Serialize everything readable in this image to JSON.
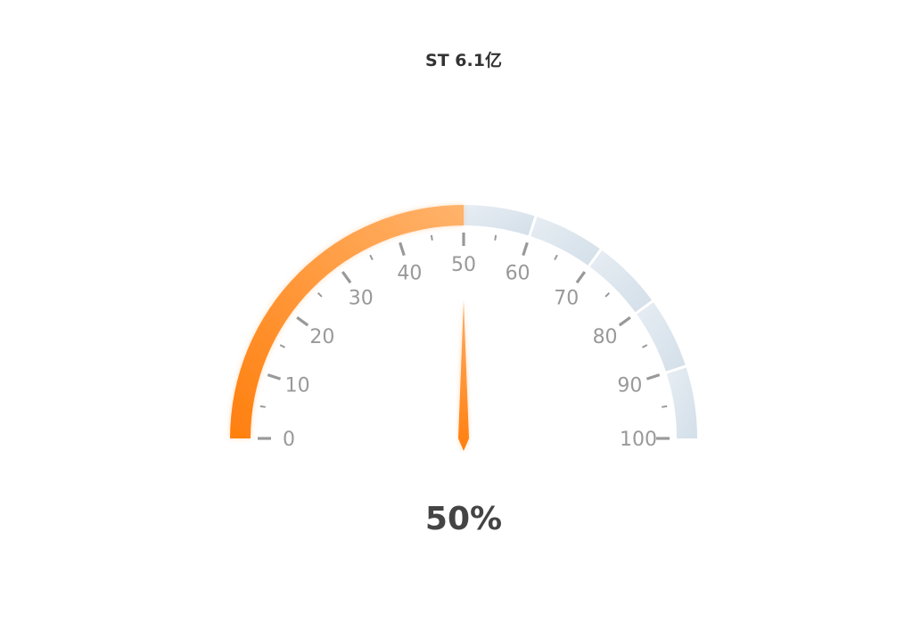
{
  "chart_data": {
    "type": "gauge",
    "title": "ST 6.1亿",
    "min": 0,
    "max": 100,
    "value": 50,
    "value_label": "50%",
    "tick_labels": [
      "0",
      "10",
      "20",
      "30",
      "40",
      "50",
      "60",
      "70",
      "80",
      "90",
      "100"
    ],
    "track_segments": 5,
    "colors": {
      "progress_start": "#ff7f0e",
      "progress_end": "#ffb36b",
      "track_start": "#e7edf3",
      "track_end": "#d3dfe9",
      "pointer_start": "#ffad66",
      "pointer_end": "#ff7f0e",
      "tick": "#999999",
      "label": "#999999",
      "title": "#333333",
      "value_text": "#444444"
    }
  }
}
